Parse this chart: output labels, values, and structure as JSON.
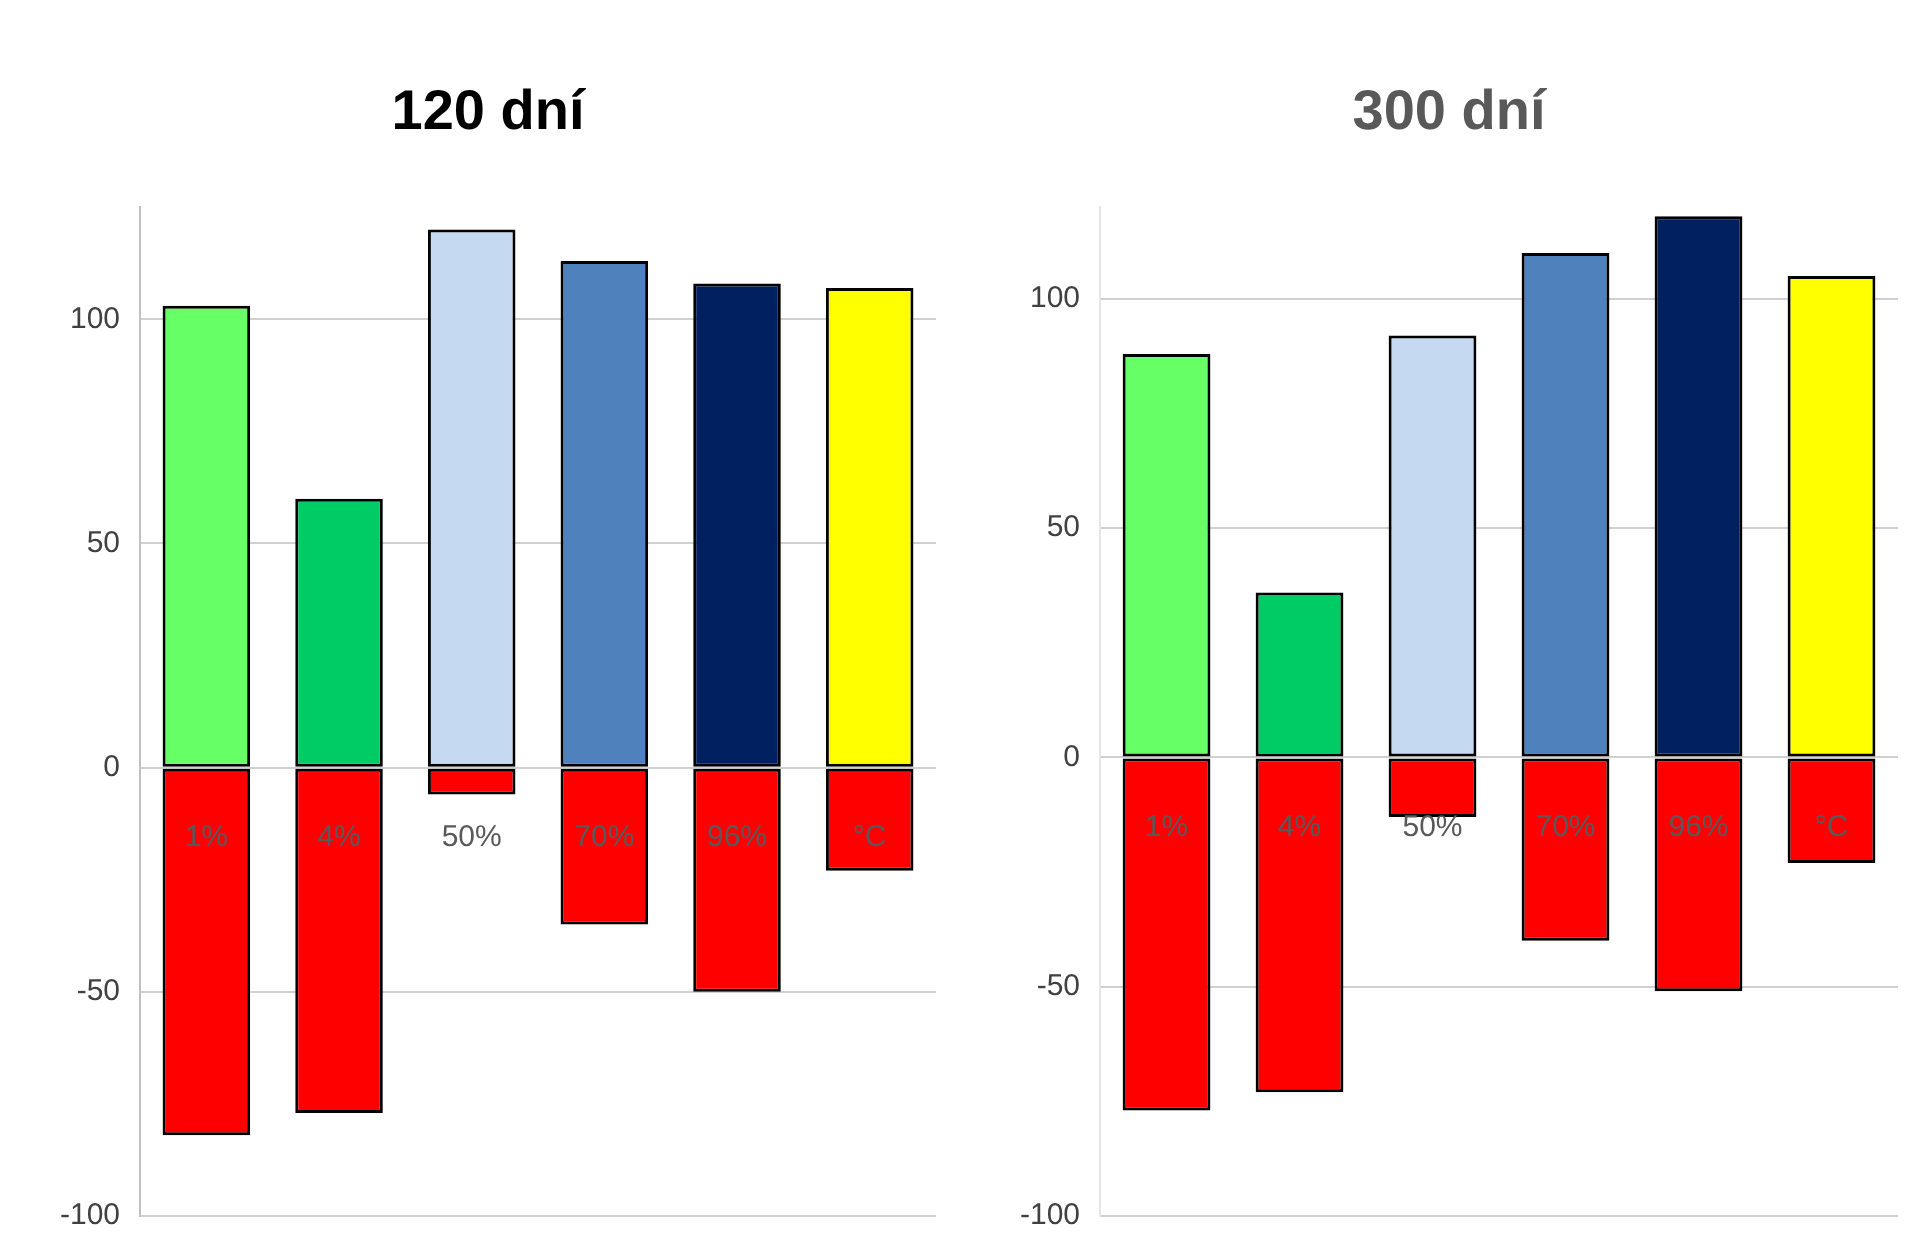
{
  "chart_data": [
    {
      "type": "bar",
      "title": "120 dní",
      "categories": [
        "1%",
        "4%",
        "50%",
        "70%",
        "96%",
        "°C"
      ],
      "stacked": true,
      "grid": "y",
      "series": [
        {
          "colors": [
            "#66ff66",
            "#00cc66",
            "#c5d9f1",
            "#4f81bd",
            "#002060",
            "#ffff00"
          ],
          "values": [
            103,
            60,
            120,
            113,
            108,
            107
          ]
        },
        {
          "color": "#ff0000",
          "values": [
            -82,
            -77,
            -6,
            -35,
            -50,
            -23
          ]
        }
      ],
      "ylim": [
        -100,
        125
      ],
      "yticks": [
        -100,
        -50,
        0,
        50,
        100
      ]
    },
    {
      "type": "bar",
      "title": "300 dní",
      "categories": [
        "1%",
        "4%",
        "50%",
        "70%",
        "96%",
        "°C"
      ],
      "stacked": true,
      "grid": "y",
      "series": [
        {
          "colors": [
            "#66ff66",
            "#00cc66",
            "#c5d9f1",
            "#4f81bd",
            "#002060",
            "#ffff00"
          ],
          "values": [
            88,
            36,
            92,
            110,
            118,
            105
          ]
        },
        {
          "color": "#ff0000",
          "values": [
            -77,
            -73,
            -13,
            -40,
            -51,
            -23
          ]
        }
      ],
      "ylim": [
        -100,
        120
      ],
      "yticks": [
        -100,
        -50,
        0,
        50,
        100
      ]
    }
  ]
}
